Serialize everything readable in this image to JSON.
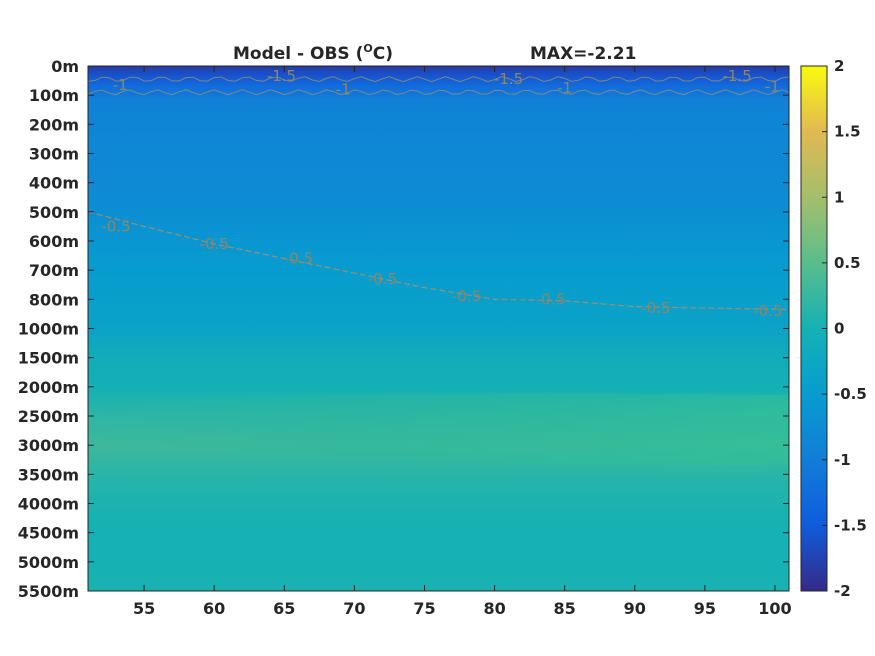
{
  "chart_data": {
    "type": "heatmap",
    "title_left": "Model - OBS (",
    "title_sup": "O",
    "title_unit": "C)",
    "title_right": "MAX=-2.21",
    "x_ticks": [
      55,
      60,
      65,
      70,
      75,
      80,
      85,
      90,
      95,
      100
    ],
    "xlim": [
      51,
      101
    ],
    "depth_ticks": [
      "0m",
      "100m",
      "200m",
      "300m",
      "400m",
      "500m",
      "600m",
      "700m",
      "800m",
      "1000m",
      "1500m",
      "2000m",
      "2500m",
      "3000m",
      "3500m",
      "4000m",
      "4500m",
      "5000m",
      "5500m"
    ],
    "colorbar": {
      "ticks": [
        2,
        1.5,
        1,
        0.5,
        0,
        -0.5,
        -1,
        -1.5,
        -2
      ],
      "tick_labels": [
        "2",
        "1.5",
        "1",
        "0.5",
        "0",
        "-0.5",
        "-1",
        "-1.5",
        "-2"
      ],
      "clim": [
        -2,
        2
      ],
      "colormap": "parula"
    },
    "field_profile": {
      "depth_index": [
        0,
        0.3,
        0.7,
        1.2,
        2,
        3,
        4,
        5,
        6,
        7,
        8,
        9,
        10,
        11,
        12,
        13,
        14,
        15,
        16,
        17,
        18
      ],
      "value": [
        -1.85,
        -1.6,
        -1.25,
        -0.95,
        -0.85,
        -0.82,
        -0.8,
        -0.72,
        -0.6,
        -0.5,
        -0.42,
        -0.35,
        -0.12,
        -0.02,
        0.18,
        0.3,
        0.15,
        0.05,
        0.0,
        0.0,
        0.04
      ]
    },
    "contour_labels": [
      {
        "text": "-1",
        "x": 53.3,
        "depth_index": 0.65
      },
      {
        "text": "-1.5",
        "x": 64.8,
        "depth_index": 0.35
      },
      {
        "text": "-1",
        "x": 69.2,
        "depth_index": 0.8
      },
      {
        "text": "-1.5",
        "x": 81.0,
        "depth_index": 0.45
      },
      {
        "text": "-1",
        "x": 85.0,
        "depth_index": 0.75
      },
      {
        "text": "-1.5",
        "x": 97.3,
        "depth_index": 0.35
      },
      {
        "text": "-1",
        "x": 99.8,
        "depth_index": 0.7
      },
      {
        "text": "-0.5",
        "x": 53.0,
        "depth_index": 5.5
      },
      {
        "text": "-0.5",
        "x": 60.0,
        "depth_index": 6.1
      },
      {
        "text": "-0.5",
        "x": 66.0,
        "depth_index": 6.6
      },
      {
        "text": "-0.5",
        "x": 72.0,
        "depth_index": 7.3
      },
      {
        "text": "-0.5",
        "x": 78.0,
        "depth_index": 7.9
      },
      {
        "text": "-0.5",
        "x": 84.0,
        "depth_index": 8.0
      },
      {
        "text": "-0.5",
        "x": 91.5,
        "depth_index": 8.3
      },
      {
        "text": "-0.5",
        "x": 99.5,
        "depth_index": 8.4
      }
    ],
    "contour_line_minus_half": {
      "x": [
        51,
        55,
        60,
        65,
        70,
        75,
        80,
        85,
        90,
        95,
        101
      ],
      "depth_index": [
        5.0,
        5.5,
        6.1,
        6.6,
        7.1,
        7.6,
        8.0,
        8.05,
        8.25,
        8.3,
        8.35
      ]
    }
  }
}
